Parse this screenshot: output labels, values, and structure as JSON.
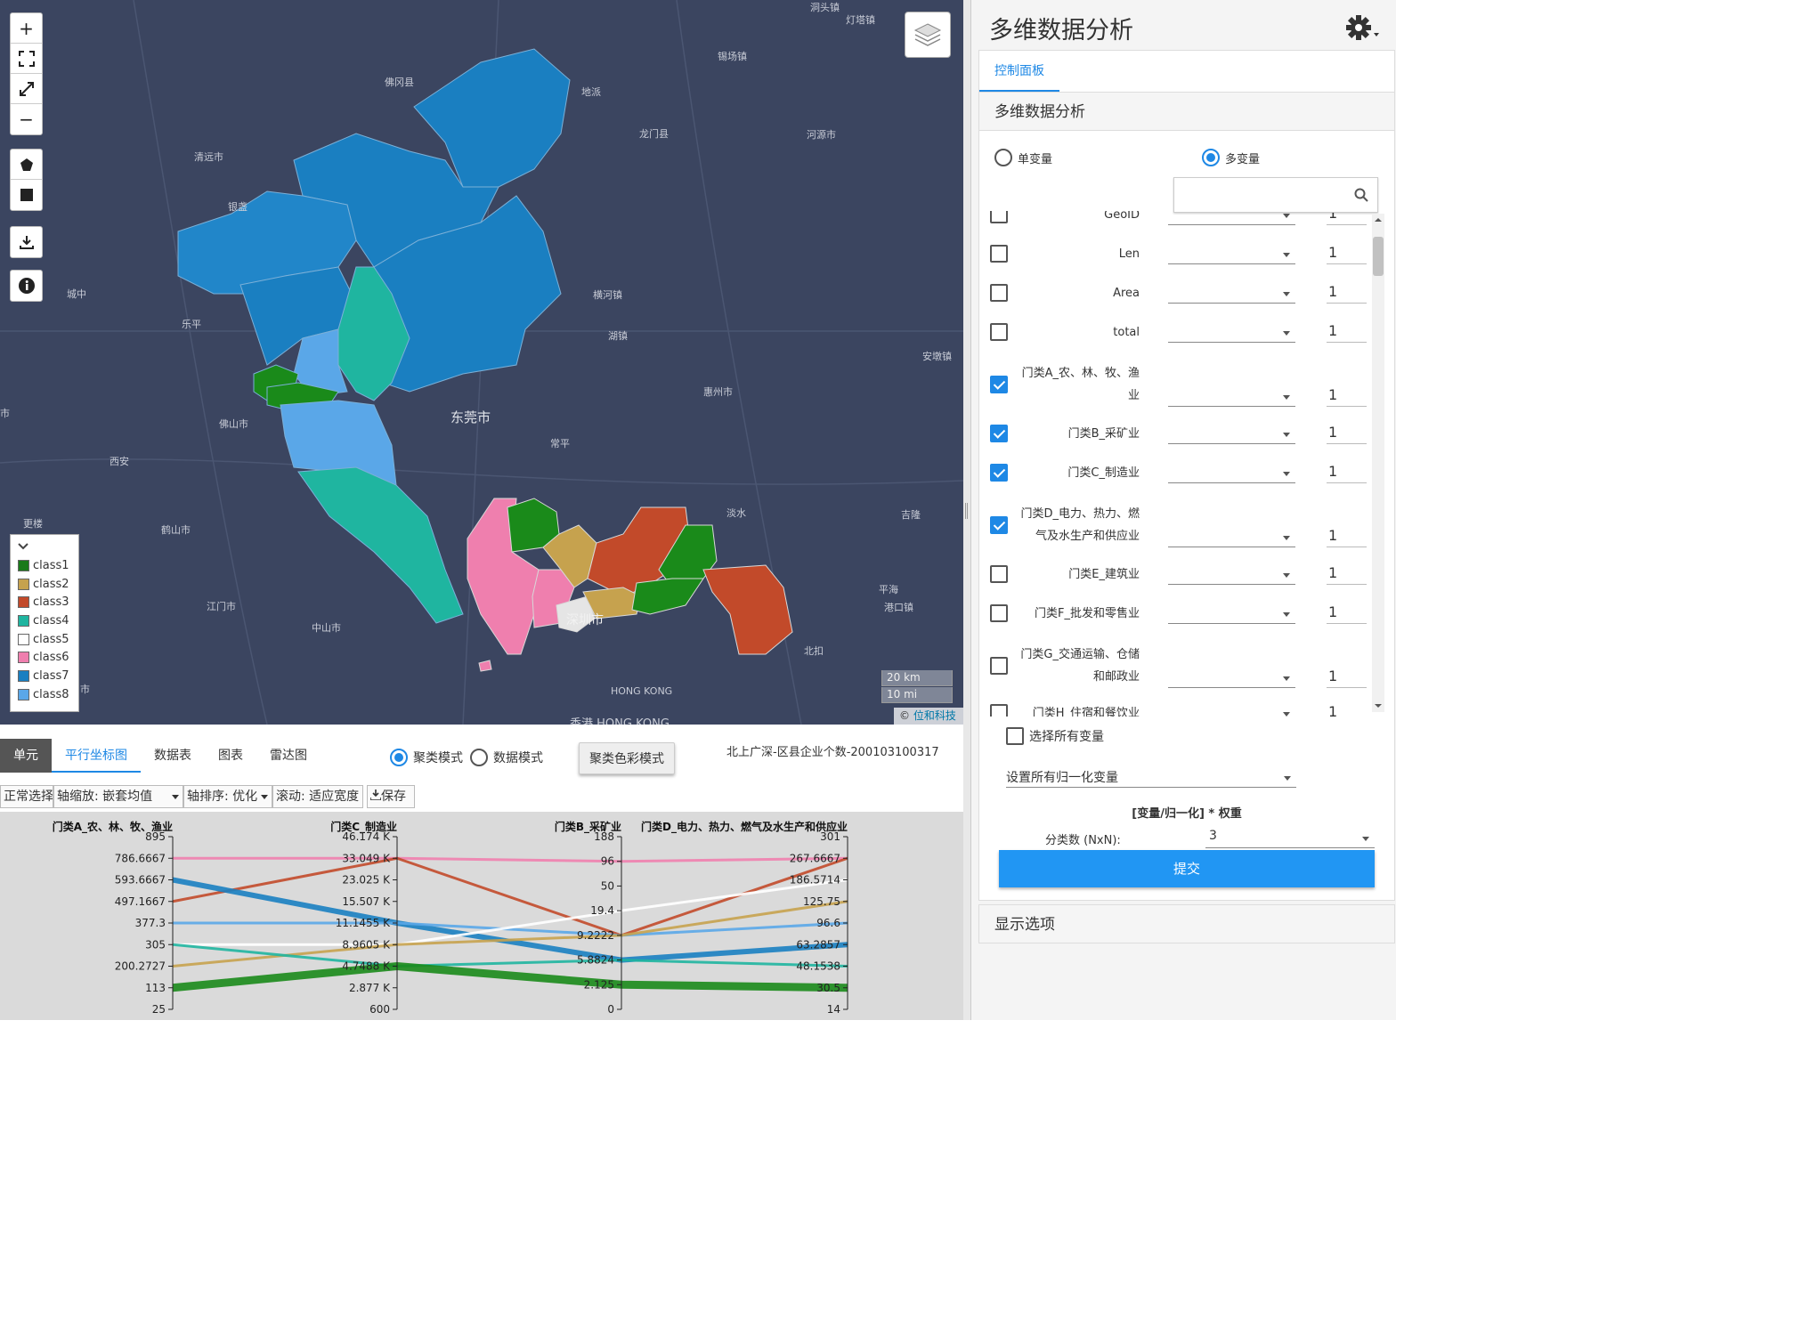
{
  "map": {
    "labels": [
      {
        "text": "洞头镇"
      },
      {
        "text": "灯塔镇"
      },
      {
        "text": "佛冈县"
      },
      {
        "text": "锡场镇"
      },
      {
        "text": "地派"
      },
      {
        "text": "龙门县"
      },
      {
        "text": "清远市"
      },
      {
        "text": "河源市"
      },
      {
        "text": "银盏"
      },
      {
        "text": "横河镇"
      },
      {
        "text": "城中"
      },
      {
        "text": "乐平"
      },
      {
        "text": "湖镇"
      },
      {
        "text": "安墩镇"
      },
      {
        "text": "东莞市"
      },
      {
        "text": "惠州市"
      },
      {
        "text": "佛山市"
      },
      {
        "text": "常平"
      },
      {
        "text": "西安"
      },
      {
        "text": "淡水"
      },
      {
        "text": "更楼"
      },
      {
        "text": "鹤山市"
      },
      {
        "text": "吉隆"
      },
      {
        "text": "平海"
      },
      {
        "text": "港口镇"
      },
      {
        "text": "江门市"
      },
      {
        "text": "中山市"
      },
      {
        "text": "北扣"
      },
      {
        "text": "深圳市"
      },
      {
        "text": "HONG KONG"
      },
      {
        "text": "香港 HONG KONG"
      },
      {
        "text": "市"
      },
      {
        "text": "市"
      }
    ],
    "legend": [
      {
        "label": "class1",
        "color": "#1a7a1a"
      },
      {
        "label": "class2",
        "color": "#c6a24e"
      },
      {
        "label": "class3",
        "color": "#c24a2a"
      },
      {
        "label": "class4",
        "color": "#1fb5a0"
      },
      {
        "label": "class5",
        "color": "#ffffff"
      },
      {
        "label": "class6",
        "color": "#ef7fae"
      },
      {
        "label": "class7",
        "color": "#1a7fc1"
      },
      {
        "label": "class8",
        "color": "#5aa7e8"
      }
    ],
    "scale_km": "20 km",
    "scale_mi": "10 mi",
    "attribution_prefix": "©",
    "attribution_link": "位和科技"
  },
  "bottom": {
    "tabs": [
      "单元",
      "平行坐标图",
      "数据表",
      "图表",
      "雷达图"
    ],
    "mode_cluster": "聚类模式",
    "mode_data": "数据模式",
    "color_mode_button": "聚类色彩模式",
    "dataset_title": "北上广深-区县企业个数-200103100317",
    "toolbar": {
      "brush": "正常选择",
      "axis_scale": "轴缩放: 嵌套均值",
      "axis_order": "轴排序: 优化",
      "scroll": "滚动: 适应宽度",
      "save": "保存"
    }
  },
  "chart_data": {
    "type": "parallel",
    "axes": [
      {
        "name": "门类A_农、林、牧、渔业",
        "ticks": [
          "895",
          "786.6667",
          "593.6667",
          "497.1667",
          "377.3",
          "305",
          "200.2727",
          "113",
          "25"
        ]
      },
      {
        "name": "门类C_制造业",
        "ticks": [
          "46.174 K",
          "33.049 K",
          "23.025 K",
          "15.507 K",
          "11.1455 K",
          "8.9605 K",
          "4.7488 K",
          "2.877 K",
          "600"
        ]
      },
      {
        "name": "门类B_采矿业",
        "ticks": [
          "188",
          "96",
          "50",
          "19.4",
          "9.2222",
          "5.8824",
          "2.125",
          "0"
        ]
      },
      {
        "name": "门类D_电力、热力、燃气及水生产和供应业",
        "ticks": [
          "301",
          "267.6667",
          "186.5714",
          "125.75",
          "96.6",
          "63.2857",
          "48.1538",
          "30.5",
          "14"
        ]
      }
    ],
    "series": [
      {
        "color": "#ef7fae",
        "values": [
          "786.6667",
          "33.049 K",
          "96",
          "267.6667"
        ]
      },
      {
        "color": "#c24a2a",
        "values": [
          "497.1667",
          "33.049 K",
          "9.2222",
          "267.6667"
        ]
      },
      {
        "color": "#1a7fc1",
        "values": [
          "593.6667",
          "11.1455 K",
          "5.8824",
          "63.2857"
        ]
      },
      {
        "color": "#5aa7e8",
        "values": [
          "377.3",
          "11.1455 K",
          "9.2222",
          "96.6"
        ]
      },
      {
        "color": "#ffffff",
        "values": [
          "305",
          "8.9605 K",
          "19.4",
          "186.5714"
        ]
      },
      {
        "color": "#c6a24e",
        "values": [
          "200.2727",
          "8.9605 K",
          "9.2222",
          "125.75"
        ]
      },
      {
        "color": "#1fb5a0",
        "values": [
          "305",
          "4.7488 K",
          "5.8824",
          "48.1538"
        ]
      },
      {
        "color": "#1a8a1a",
        "values": [
          "113",
          "4.7488 K",
          "2.125",
          "30.5"
        ]
      }
    ]
  },
  "side": {
    "title": "多维数据分析",
    "card_tab": "控制面板",
    "section_title": "多维数据分析",
    "single_var": "单变量",
    "multi_var": "多变量",
    "search_placeholder": "",
    "variables": [
      {
        "name": "GeoID",
        "checked": false,
        "weight": "1"
      },
      {
        "name": "Len",
        "checked": false,
        "weight": "1"
      },
      {
        "name": "Area",
        "checked": false,
        "weight": "1"
      },
      {
        "name": "total",
        "checked": false,
        "weight": "1"
      },
      {
        "name": "门类A_农、林、牧、渔业",
        "checked": true,
        "weight": "1"
      },
      {
        "name": "门类B_采矿业",
        "checked": true,
        "weight": "1"
      },
      {
        "name": "门类C_制造业",
        "checked": true,
        "weight": "1"
      },
      {
        "name": "门类D_电力、热力、燃气及水生产和供应业",
        "checked": true,
        "weight": "1"
      },
      {
        "name": "门类E_建筑业",
        "checked": false,
        "weight": "1"
      },
      {
        "name": "门类F_批发和零售业",
        "checked": false,
        "weight": "1"
      },
      {
        "name": "门类G_交通运输、仓储和邮政业",
        "checked": false,
        "weight": "1"
      },
      {
        "name": "门类H_住宿和餐饮业",
        "checked": false,
        "weight": "1"
      }
    ],
    "select_all": "选择所有变量",
    "set_all_normalize": "设置所有归一化变量",
    "formula": "[变量/归一化] * 权重",
    "cluster_label": "分类数 (NxN):",
    "cluster_value": "3",
    "submit": "提交",
    "display_options": "显示选项"
  }
}
